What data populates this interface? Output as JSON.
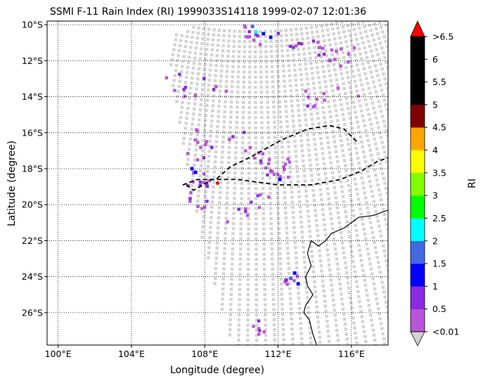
{
  "title": "SSMI F-11 Rain Index (RI) 1999033S14118 1999-02-07 12:01:36",
  "xlabel": "Longitude (degree)",
  "ylabel": "Latitude (degree)",
  "x_ticks": [
    "100°E",
    "104°E",
    "108°E",
    "112°E",
    "116°E"
  ],
  "y_ticks": [
    "10°S",
    "12°S",
    "14°S",
    "16°S",
    "18°S",
    "20°S",
    "22°S",
    "24°S",
    "26°S"
  ],
  "colorbar": {
    "label": "RI",
    "tick_labels": [
      "<0.01",
      "0.5",
      "1",
      "1.5",
      "2",
      "2.5",
      "3",
      "3.5",
      "4",
      "4.5",
      "5",
      "5.5",
      "6",
      ">6.5"
    ],
    "colors": [
      "#b855d8",
      "#8a2be2",
      "#0000ff",
      "#4169e1",
      "#00ffff",
      "#00ff00",
      "#7fff00",
      "#ffff00",
      "#ffa500",
      "#800000",
      "#000000",
      "#000000",
      "#000000"
    ],
    "over_color": "#ff0000",
    "under_color": "#d3d3d3"
  },
  "chart_data": {
    "type": "map",
    "title": "SSMI F-11 Rain Index (RI) 1999033S14118 1999-02-07 12:01:36",
    "xlabel": "Longitude (degree)",
    "ylabel": "Latitude (degree)",
    "xlim": [
      99.4,
      118.0
    ],
    "ylim": [
      -27.8,
      -9.8
    ],
    "grid": true,
    "swath_color": "#d3d3d3",
    "storm_track_style": "dashed black",
    "storm_center": {
      "lon": 108.7,
      "lat": -18.8,
      "color": "#ff0000"
    },
    "track_upper": [
      [
        106.8,
        -18.9
      ],
      [
        107.6,
        -18.6
      ],
      [
        108.6,
        -18.6
      ],
      [
        109.4,
        -17.9
      ],
      [
        110.6,
        -17.3
      ],
      [
        112.2,
        -16.4
      ],
      [
        113.6,
        -15.8
      ],
      [
        114.8,
        -15.6
      ],
      [
        115.6,
        -15.8
      ],
      [
        116.0,
        -16.2
      ],
      [
        116.4,
        -16.6
      ]
    ],
    "track_lower": [
      [
        107.0,
        -18.9
      ],
      [
        107.4,
        -19.2
      ],
      [
        108.4,
        -18.6
      ],
      [
        109.8,
        -18.6
      ],
      [
        112.0,
        -18.9
      ],
      [
        113.8,
        -18.9
      ],
      [
        115.4,
        -18.6
      ],
      [
        116.6,
        -18.1
      ],
      [
        117.4,
        -17.6
      ],
      [
        118.0,
        -17.4
      ]
    ],
    "coastline": [
      [
        118.0,
        -20.3
      ],
      [
        117.2,
        -20.6
      ],
      [
        116.4,
        -20.7
      ],
      [
        115.6,
        -21.3
      ],
      [
        114.9,
        -21.6
      ],
      [
        114.6,
        -22.0
      ],
      [
        114.2,
        -22.3
      ],
      [
        113.8,
        -22.0
      ],
      [
        113.6,
        -22.7
      ],
      [
        113.8,
        -23.4
      ],
      [
        113.5,
        -24.0
      ],
      [
        113.6,
        -24.5
      ],
      [
        113.9,
        -25.0
      ],
      [
        113.5,
        -25.6
      ],
      [
        113.4,
        -26.0
      ],
      [
        113.7,
        -26.4
      ],
      [
        113.9,
        -27.2
      ],
      [
        114.1,
        -27.8
      ]
    ],
    "rain_index_cells": [
      {
        "lon": 110.6,
        "lat": -10.1,
        "ri": 1.6
      },
      {
        "lon": 110.8,
        "lat": -10.4,
        "ri": 2.2
      },
      {
        "lon": 111.2,
        "lat": -10.5,
        "ri": 1.2
      },
      {
        "lon": 111.6,
        "lat": -10.7,
        "ri": 1.0
      },
      {
        "lon": 107.3,
        "lat": -18.0,
        "ri": 1.2
      },
      {
        "lon": 107.5,
        "lat": -18.2,
        "ri": 1.1
      },
      {
        "lon": 112.1,
        "lat": -18.6,
        "ri": 1.0
      },
      {
        "lon": 112.9,
        "lat": -23.8,
        "ri": 1.2
      },
      {
        "lon": 113.1,
        "lat": -24.4,
        "ri": 1.1
      },
      {
        "lon": 112.7,
        "lat": -24.1,
        "ri": 1.6
      }
    ]
  }
}
